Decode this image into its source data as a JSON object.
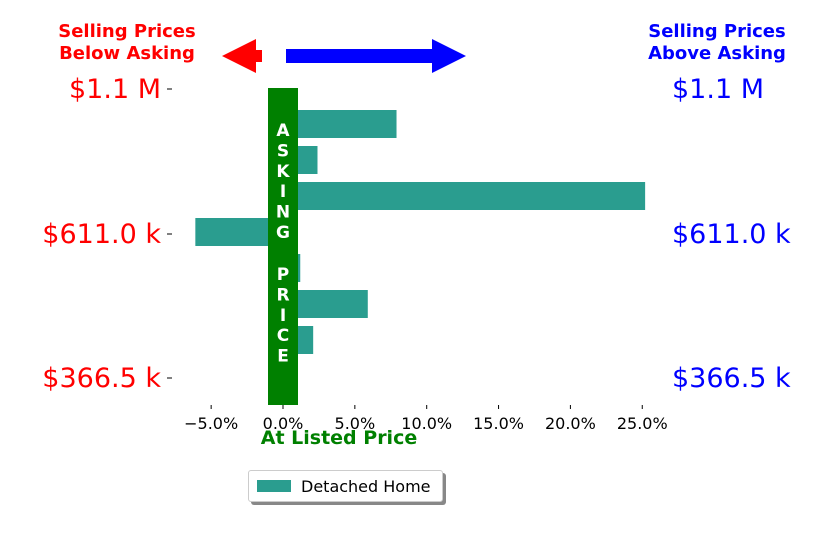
{
  "header": {
    "left_title_line1": "Selling Prices",
    "left_title_line2": "Below Asking",
    "right_title_line1": "Selling Prices",
    "right_title_line2": "Above Asking"
  },
  "asking_bar": {
    "letters_top": [
      "A",
      "S",
      "K",
      "I",
      "N",
      "G"
    ],
    "letters_bottom": [
      "P",
      "R",
      "I",
      "C",
      "E"
    ],
    "color": "#008000"
  },
  "xlabel": "At Listed Price",
  "legend": {
    "label": "Detached Home"
  },
  "colors": {
    "bar": "#2a9d8f",
    "left_text": "#ff0000",
    "right_text": "#0000ff",
    "center": "#008000"
  },
  "chart_data": {
    "type": "bar",
    "orientation": "horizontal",
    "series": [
      {
        "name": "Detached Home",
        "values": [
          7.9,
          2.4,
          25.2,
          -6.1,
          1.2,
          5.9,
          2.1
        ]
      }
    ],
    "xlim": [
      -7.5,
      26.0
    ],
    "xticks": [
      -5.0,
      0.0,
      5.0,
      10.0,
      15.0,
      20.0,
      25.0
    ],
    "xtick_labels": [
      "−5.0%",
      "0.0%",
      "5.0%",
      "10.0%",
      "15.0%",
      "20.0%",
      "25.0%"
    ],
    "y_tick_labels_left": [
      "$1.1 M",
      "$611.0 k",
      "$366.5 k"
    ],
    "y_tick_labels_right": [
      "$1.1 M",
      "$611.0 k",
      "$366.5 k"
    ]
  }
}
